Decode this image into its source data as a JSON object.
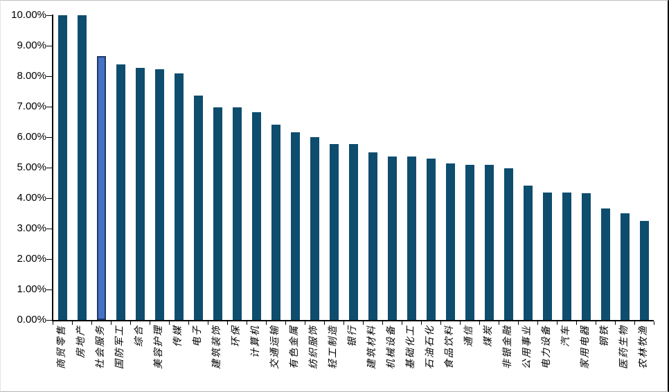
{
  "chart_data": {
    "type": "bar",
    "title": "",
    "xlabel": "",
    "ylabel": "",
    "ylim": [
      0,
      10
    ],
    "grid": false,
    "legend": false,
    "y_tick_labels": [
      "0.00%",
      "1.00%",
      "2.00%",
      "3.00%",
      "4.00%",
      "5.00%",
      "6.00%",
      "7.00%",
      "8.00%",
      "9.00%",
      "10.00%"
    ],
    "categories": [
      "商贸零售",
      "房地产",
      "社会服务",
      "国防军工",
      "综合",
      "美容护理",
      "传媒",
      "电子",
      "建筑装饰",
      "环保",
      "计算机",
      "交通运输",
      "有色金属",
      "纺织服饰",
      "轻工制造",
      "银行",
      "建筑材料",
      "机械设备",
      "基础化工",
      "石油石化",
      "食品饮料",
      "通信",
      "煤炭",
      "非银金融",
      "公用事业",
      "电力设备",
      "汽车",
      "家用电器",
      "钢铁",
      "医药生物",
      "农林牧渔"
    ],
    "values": [
      10.0,
      10.0,
      8.65,
      8.38,
      8.28,
      8.22,
      8.08,
      7.36,
      6.98,
      6.98,
      6.81,
      6.4,
      6.15,
      6.0,
      5.77,
      5.77,
      5.49,
      5.37,
      5.36,
      5.3,
      5.13,
      5.1,
      5.08,
      4.98,
      4.4,
      4.19,
      4.18,
      4.16,
      3.66,
      3.49,
      3.26
    ],
    "highlight_index": 2,
    "highlighted_category": "社会服务",
    "colors": {
      "bar": "#0E4D6E",
      "highlight_fill": "#4472C4",
      "highlight_border": "#1F3864",
      "axis": "#000000"
    }
  }
}
